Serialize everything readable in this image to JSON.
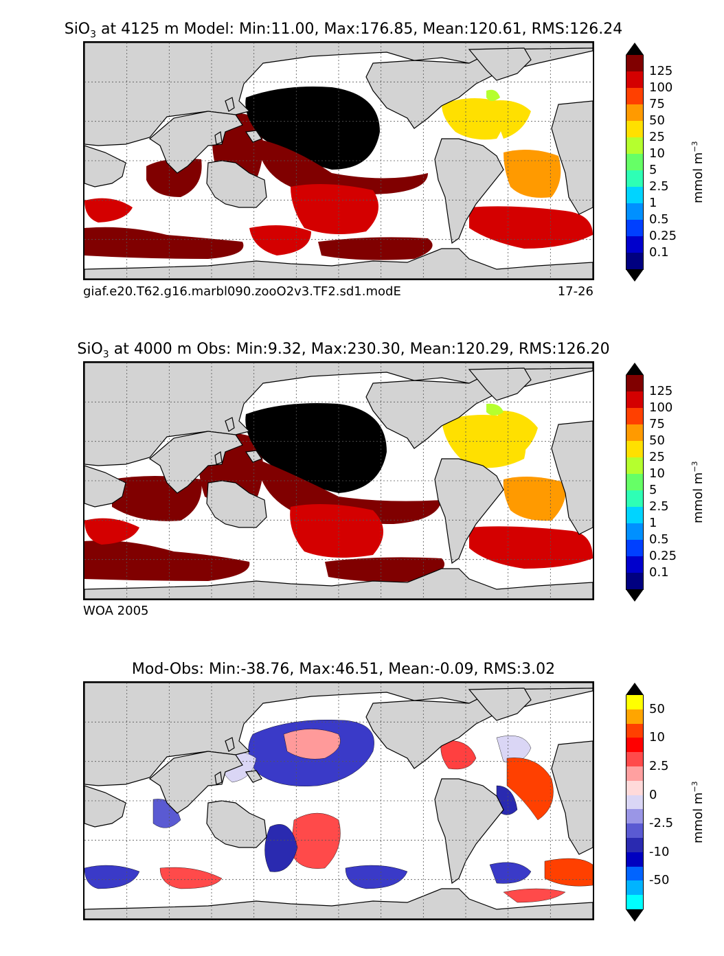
{
  "panels": [
    {
      "title_prefix": "SiO",
      "title_sub": "3",
      "title_rest": " at 4125 m Model: Min:11.00, Max:176.85, Mean:120.61, RMS:126.24",
      "footer_left": "giaf.e20.T62.g16.marbl090.zooO2v3.TF2.sd1.modE",
      "footer_right": "17-26",
      "colorbar": {
        "ticks": [
          "125",
          "100",
          "75",
          "50",
          "25",
          "10",
          "5",
          "2.5",
          "1",
          "0.5",
          "0.25",
          "0.1"
        ],
        "colors": [
          "#800000",
          "#d40000",
          "#ff4000",
          "#ff9a00",
          "#ffe000",
          "#b5ff2e",
          "#66ff66",
          "#2effb5",
          "#00d4ff",
          "#0090ff",
          "#0040ff",
          "#0000cc",
          "#000080"
        ],
        "top_color": "#000000",
        "bottom_color": "#000000",
        "unit": "mmol m",
        "unit_sup": "−3"
      }
    },
    {
      "title_prefix": "SiO",
      "title_sub": "3",
      "title_rest": " at 4000 m Obs: Min:9.32, Max:230.30, Mean:120.29, RMS:126.20",
      "footer_left": "WOA 2005",
      "footer_right": "",
      "colorbar": {
        "ticks": [
          "125",
          "100",
          "75",
          "50",
          "25",
          "10",
          "5",
          "2.5",
          "1",
          "0.5",
          "0.25",
          "0.1"
        ],
        "colors": [
          "#800000",
          "#d40000",
          "#ff4000",
          "#ff9a00",
          "#ffe000",
          "#b5ff2e",
          "#66ff66",
          "#2effb5",
          "#00d4ff",
          "#0090ff",
          "#0040ff",
          "#0000cc",
          "#000080"
        ],
        "top_color": "#000000",
        "bottom_color": "#000000",
        "unit": "mmol m",
        "unit_sup": "−3"
      }
    },
    {
      "title_prefix": "",
      "title_sub": "",
      "title_rest": "Mod-Obs: Min:-38.76, Max:46.51, Mean:-0.09, RMS:3.02",
      "footer_left": "",
      "footer_right": "",
      "colorbar": {
        "ticks": [
          "50",
          "10",
          "2.5",
          "0",
          "-2.5",
          "-10",
          "-50"
        ],
        "colors": [
          "#ffff00",
          "#ffa500",
          "#ff4000",
          "#ff0000",
          "#ff4a4a",
          "#ffa0a0",
          "#ffdada",
          "#dad6f5",
          "#9a96e6",
          "#5a5ad2",
          "#2a2ab0",
          "#0000c0",
          "#0064ff",
          "#00b4ff",
          "#00ffff"
        ],
        "top_color": "#000000",
        "bottom_color": "#000000",
        "unit": "mmol m",
        "unit_sup": "−3"
      }
    }
  ]
}
